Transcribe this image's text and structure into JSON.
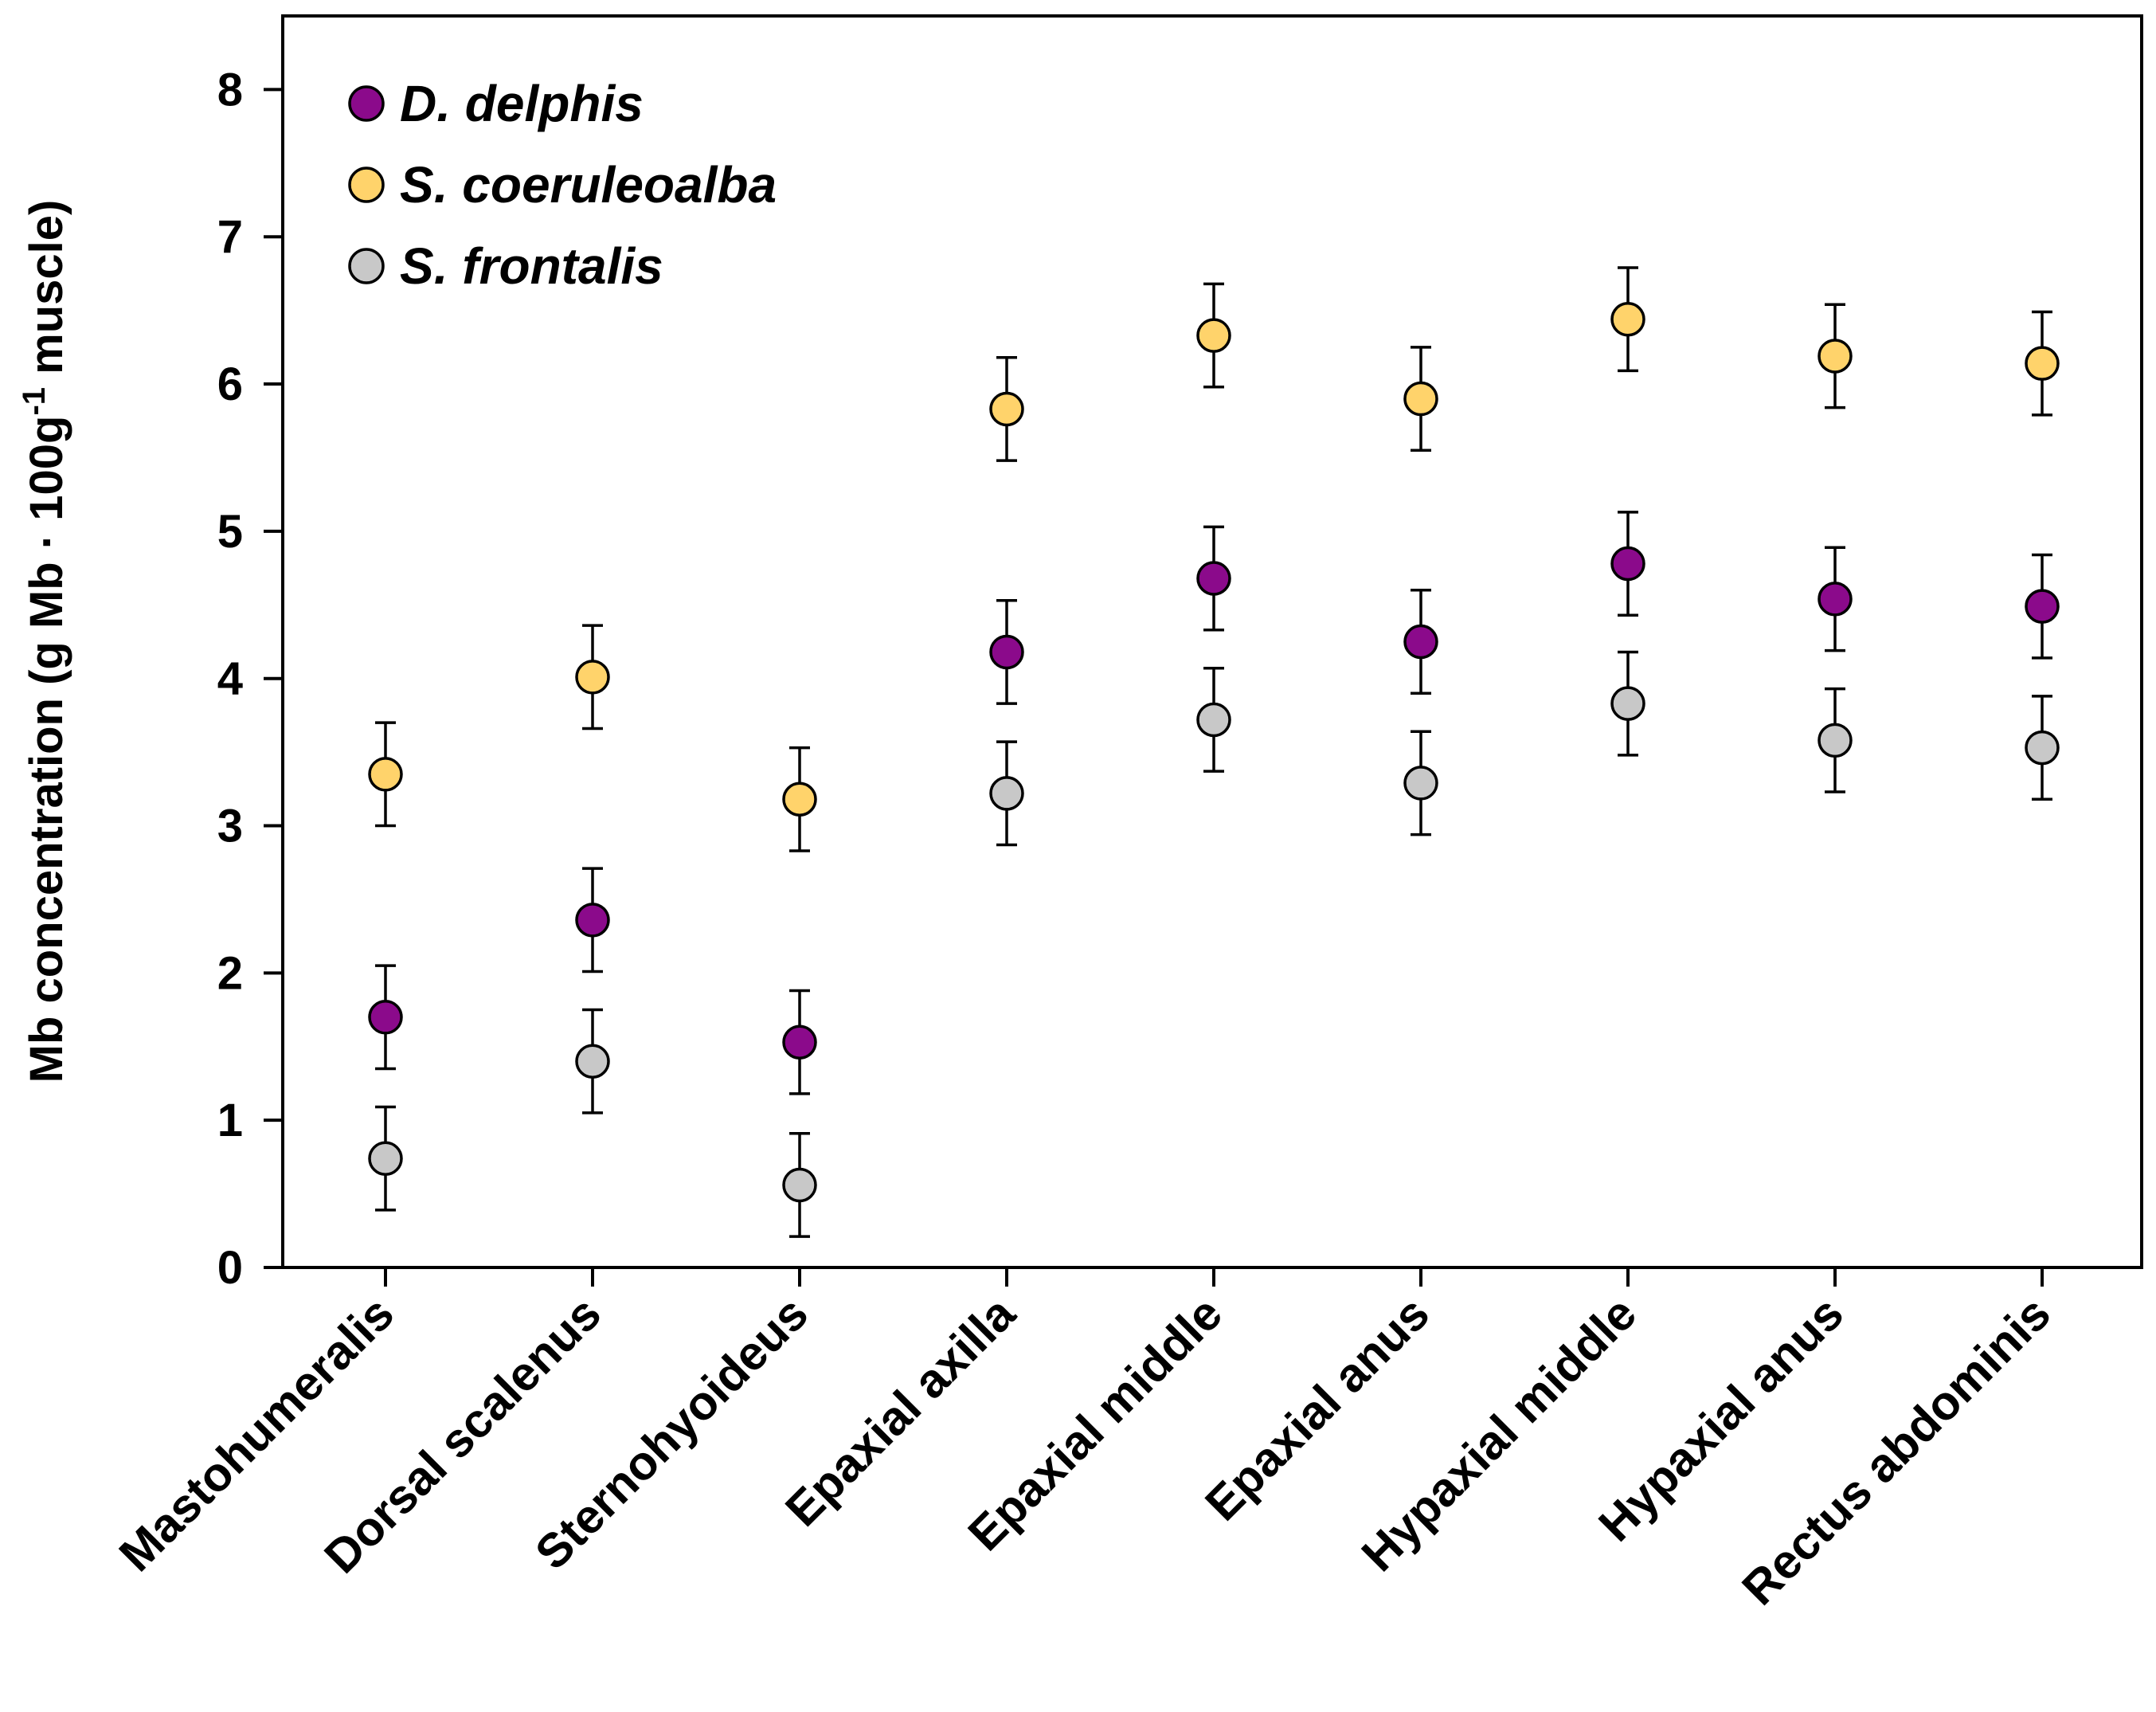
{
  "chart_data": {
    "type": "scatter",
    "title": "",
    "xlabel": "",
    "ylabel": "Mb concentration (g Mb · 100g",
    "ylabel_sup": "-1",
    "ylabel_tail": " muscle)",
    "ylim": [
      0,
      8.5
    ],
    "yticks": [
      "0",
      "1",
      "2",
      "3",
      "4",
      "5",
      "6",
      "7",
      "8"
    ],
    "categories": [
      "Mastohumeralis",
      "Dorsal scalenus",
      "Sternohyoideus",
      "Epaxial axilla",
      "Epaxial middle",
      "Epaxial anus",
      "Hypaxial middle",
      "Hypaxial anus",
      "Rectus abdominis"
    ],
    "legend_position": "top-left",
    "series": [
      {
        "name": "D. delphis",
        "color": "#8B0A8B",
        "values": [
          1.7,
          2.36,
          1.53,
          4.18,
          4.68,
          4.25,
          4.78,
          4.54,
          4.49
        ],
        "errors": [
          0.35,
          0.35,
          0.35,
          0.35,
          0.35,
          0.35,
          0.35,
          0.35,
          0.35
        ]
      },
      {
        "name": "S. coeruleoalba",
        "color": "#FFD36B",
        "values": [
          3.35,
          4.01,
          3.18,
          5.83,
          6.33,
          5.9,
          6.44,
          6.19,
          6.14
        ],
        "errors": [
          0.35,
          0.35,
          0.35,
          0.35,
          0.35,
          0.35,
          0.35,
          0.35,
          0.35
        ]
      },
      {
        "name": "S. frontalis",
        "color": "#C8C8C8",
        "values": [
          0.74,
          1.4,
          0.56,
          3.22,
          3.72,
          3.29,
          3.83,
          3.58,
          3.53
        ],
        "errors": [
          0.35,
          0.35,
          0.35,
          0.35,
          0.35,
          0.35,
          0.35,
          0.35,
          0.35
        ]
      }
    ]
  }
}
